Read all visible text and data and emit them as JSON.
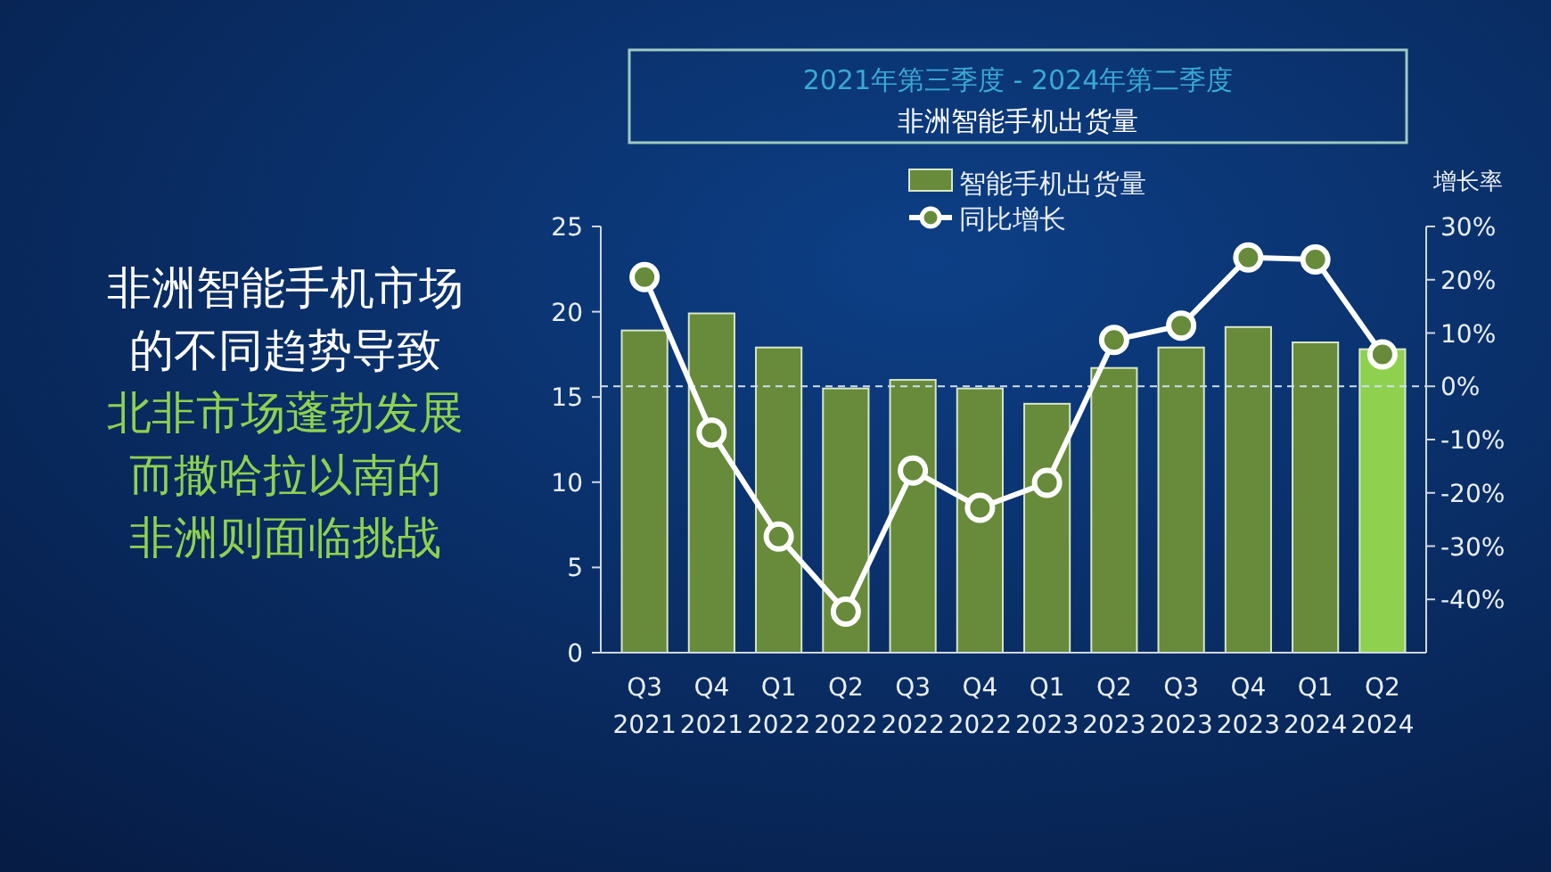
{
  "chart_data": {
    "type": "bar",
    "title": "2021年第三季度 - 2024年第二季度",
    "subtitle": "非洲智能手机出货量",
    "y2label": "增长率",
    "annotations": [
      "非洲智能手机市场",
      "的不同趋势导致",
      "北非市场蓬勃发展",
      "而撒哈拉以南的",
      "非洲则面临挑战"
    ],
    "categories": [
      "Q3 2021",
      "Q4 2021",
      "Q1 2022",
      "Q2 2022",
      "Q3 2022",
      "Q4 2022",
      "Q1 2023",
      "Q2 2023",
      "Q3 2023",
      "Q4 2023",
      "Q1 2024",
      "Q2 2024"
    ],
    "series": [
      {
        "name": "智能手机出货量",
        "colors": [
          "#678b3a",
          "#678b3a",
          "#678b3a",
          "#678b3a",
          "#678b3a",
          "#678b3a",
          "#678b3a",
          "#678b3a",
          "#678b3a",
          "#678b3a",
          "#678b3a",
          "#8fd14f"
        ],
        "values": [
          18.9,
          19.9,
          17.9,
          15.5,
          16.0,
          15.5,
          14.6,
          16.7,
          17.9,
          19.1,
          18.2,
          17.8
        ]
      },
      {
        "name": "同比增长",
        "type": "line",
        "axis": "y2",
        "color": "#ffffff",
        "marker": "circle",
        "values": [
          20.5,
          -8.7,
          -28.2,
          -42.3,
          -15.8,
          -22.8,
          -18.1,
          8.7,
          11.4,
          24.2,
          23.8,
          6.0
        ]
      }
    ],
    "ylim": [
      0,
      25
    ],
    "yticks": [
      0,
      5,
      10,
      15,
      20,
      25
    ],
    "y2lim": [
      -50,
      30
    ],
    "y2ticks": [
      {
        "value": 30,
        "label": "30%"
      },
      {
        "value": 20,
        "label": "20%"
      },
      {
        "value": 10,
        "label": "10%"
      },
      {
        "value": 0,
        "label": "0%"
      },
      {
        "value": -10,
        "label": "-10%"
      },
      {
        "value": -20,
        "label": "-20%"
      },
      {
        "value": -30,
        "label": "-30%"
      },
      {
        "value": -40,
        "label": "-40%"
      }
    ],
    "ref_lines": [
      {
        "axis": "y2",
        "value": 0,
        "color": "#cfe0f0",
        "line_style": "dashed"
      }
    ],
    "legend": "top",
    "grid": false
  }
}
